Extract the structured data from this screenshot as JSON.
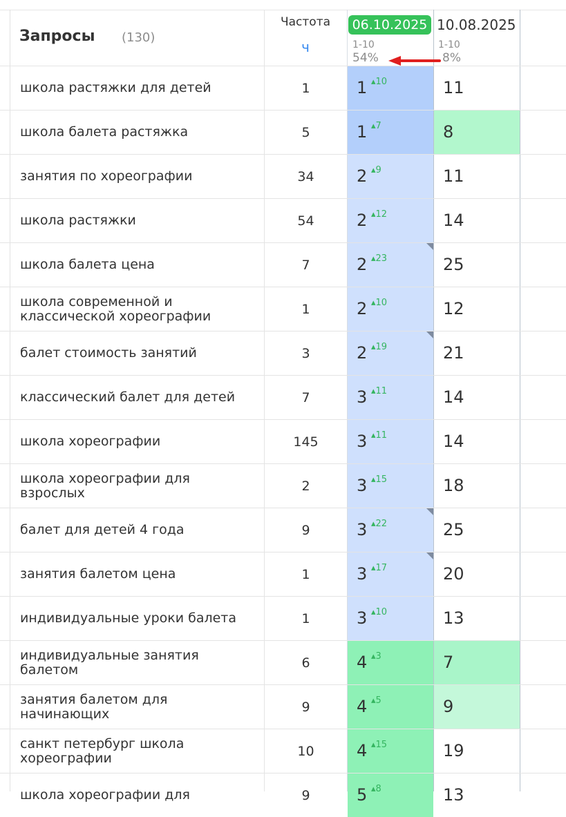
{
  "header": {
    "query_title": "Запросы",
    "query_count": "(130)",
    "freq_title": "Частота",
    "freq_link": "ч",
    "date1": "06.10.2025",
    "date1_range": "1-10",
    "date1_pct": "54%",
    "date2": "10.08.2025",
    "date2_range": "1-10",
    "date2_pct": "8%"
  },
  "colors": {
    "blue_strong": "#b3cffb",
    "blue_light": "#d3e2fd",
    "green_strong": "#8ef1b6",
    "green_medium": "#a9f5c9",
    "green_light": "#c4f8da",
    "date_badge": "#36c25a",
    "delta_up": "#35b560",
    "annotation_arrow": "#e01f1f"
  },
  "rows": [
    {
      "query": "школа растяжки для детей",
      "freq": "1",
      "pos1": "1",
      "delta": "10",
      "pos2": "11",
      "bg1": "#b3cffb",
      "bg2": "#ffffff",
      "flag": false
    },
    {
      "query": "школа балета растяжка",
      "freq": "5",
      "pos1": "1",
      "delta": "7",
      "pos2": "8",
      "bg1": "#b3cffb",
      "bg2": "#b2f7cd",
      "flag": false
    },
    {
      "query": "занятия по хореографии",
      "freq": "34",
      "pos1": "2",
      "delta": "9",
      "pos2": "11",
      "bg1": "#cfe0fd",
      "bg2": "#ffffff",
      "flag": false
    },
    {
      "query": "школа растяжки",
      "freq": "54",
      "pos1": "2",
      "delta": "12",
      "pos2": "14",
      "bg1": "#cfe0fd",
      "bg2": "#ffffff",
      "flag": false
    },
    {
      "query": "школа балета цена",
      "freq": "7",
      "pos1": "2",
      "delta": "23",
      "pos2": "25",
      "bg1": "#cfe0fd",
      "bg2": "#ffffff",
      "flag": true
    },
    {
      "query": "школа современной и классической хореографии",
      "freq": "1",
      "pos1": "2",
      "delta": "10",
      "pos2": "12",
      "bg1": "#cfe0fd",
      "bg2": "#ffffff",
      "flag": false
    },
    {
      "query": "балет стоимость занятий",
      "freq": "3",
      "pos1": "2",
      "delta": "19",
      "pos2": "21",
      "bg1": "#cfe0fd",
      "bg2": "#ffffff",
      "flag": true
    },
    {
      "query": "классический балет для детей",
      "freq": "7",
      "pos1": "3",
      "delta": "11",
      "pos2": "14",
      "bg1": "#cfe0fd",
      "bg2": "#ffffff",
      "flag": false
    },
    {
      "query": "школа хореографии",
      "freq": "145",
      "pos1": "3",
      "delta": "11",
      "pos2": "14",
      "bg1": "#cfe0fd",
      "bg2": "#ffffff",
      "flag": false
    },
    {
      "query": "школа хореографии для взрослых",
      "freq": "2",
      "pos1": "3",
      "delta": "15",
      "pos2": "18",
      "bg1": "#cfe0fd",
      "bg2": "#ffffff",
      "flag": false
    },
    {
      "query": "балет для детей 4 года",
      "freq": "9",
      "pos1": "3",
      "delta": "22",
      "pos2": "25",
      "bg1": "#cfe0fd",
      "bg2": "#ffffff",
      "flag": true
    },
    {
      "query": "занятия балетом цена",
      "freq": "1",
      "pos1": "3",
      "delta": "17",
      "pos2": "20",
      "bg1": "#cfe0fd",
      "bg2": "#ffffff",
      "flag": true
    },
    {
      "query": "индивидуальные уроки балета",
      "freq": "1",
      "pos1": "3",
      "delta": "10",
      "pos2": "13",
      "bg1": "#cfe0fd",
      "bg2": "#ffffff",
      "flag": false
    },
    {
      "query": "индивидуальные занятия балетом",
      "freq": "6",
      "pos1": "4",
      "delta": "3",
      "pos2": "7",
      "bg1": "#8ef1b6",
      "bg2": "#a9f5c9",
      "flag": false
    },
    {
      "query": "занятия балетом для начинающих",
      "freq": "9",
      "pos1": "4",
      "delta": "5",
      "pos2": "9",
      "bg1": "#8ef1b6",
      "bg2": "#c4f8da",
      "flag": false
    },
    {
      "query": "санкт петербург школа хореографии",
      "freq": "10",
      "pos1": "4",
      "delta": "15",
      "pos2": "19",
      "bg1": "#8ef1b6",
      "bg2": "#ffffff",
      "flag": false
    },
    {
      "query": "школа хореографии для",
      "freq": "9",
      "pos1": "5",
      "delta": "8",
      "pos2": "13",
      "bg1": "#8ef1b6",
      "bg2": "#ffffff",
      "flag": false
    }
  ]
}
